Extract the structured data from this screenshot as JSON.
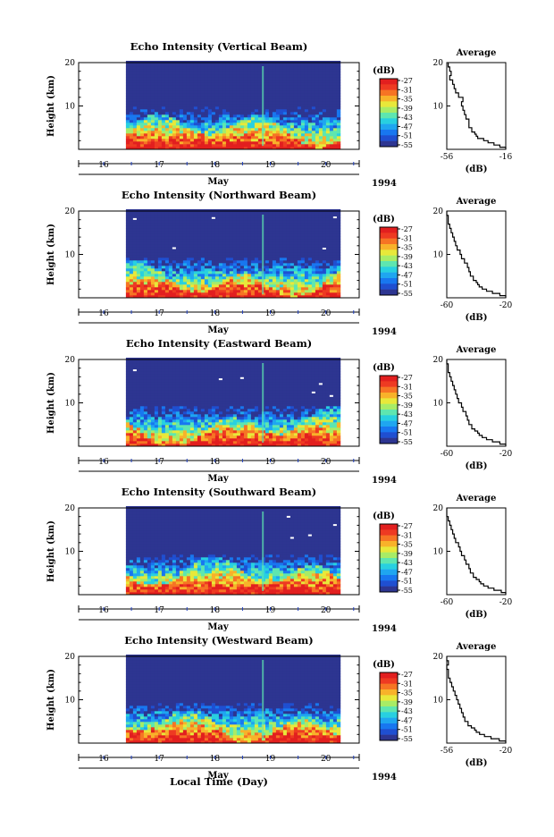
{
  "figure": {
    "x_axis_title": "Local Time (Day)",
    "month_label": "May",
    "year_label": "1994"
  },
  "colorbar": {
    "title": "(dB)",
    "ticks": [
      "-27",
      "-31",
      "-35",
      "-39",
      "-43",
      "-47",
      "-51",
      "-55"
    ],
    "colors": [
      "#2d3591",
      "#1f4fd1",
      "#1877f0",
      "#1fa6f0",
      "#28d0e0",
      "#5ee6b0",
      "#a8ec66",
      "#e8e83a",
      "#f8b22a",
      "#f67424",
      "#ee3a22",
      "#e21f1f"
    ]
  },
  "chart_data": [
    {
      "type": "heatmap",
      "title": "Echo Intensity (Vertical Beam)",
      "ylabel": "Height (km)",
      "xlabel": "May",
      "ylim": [
        0,
        20
      ],
      "y_ticks": [
        "10",
        "20"
      ],
      "x_ticks": [
        "16",
        "17",
        "18",
        "19",
        "20"
      ],
      "xlim": [
        15.55,
        20.6
      ],
      "data_range": [
        16.4,
        20.2
      ],
      "colorbar_range_db": [
        -55,
        -27
      ],
      "profile": {
        "title": "Average",
        "xlabel": "(dB)",
        "x_ticks": [
          "-56",
          "-16"
        ],
        "xlim": [
          -56,
          -16
        ],
        "ylim": [
          0,
          20
        ],
        "y_ticks": [
          "10",
          "20"
        ],
        "height_km": [
          0.5,
          1,
          1.5,
          2,
          2.5,
          3,
          3.5,
          4,
          5,
          6,
          7,
          8,
          9,
          10,
          11,
          12,
          13,
          14,
          15,
          16,
          17,
          18,
          19,
          20
        ],
        "db": [
          -16,
          -20,
          -24,
          -28,
          -31,
          -35,
          -36,
          -37,
          -39,
          -41,
          -41,
          -43,
          -44,
          -45,
          -46,
          -45,
          -48,
          -50,
          -51,
          -52,
          -54,
          -53,
          -54,
          -55
        ]
      }
    },
    {
      "type": "heatmap",
      "title": "Echo Intensity (Northward Beam)",
      "ylabel": "Height (km)",
      "xlabel": "May",
      "ylim": [
        0,
        20
      ],
      "y_ticks": [
        "10",
        "20"
      ],
      "x_ticks": [
        "16",
        "17",
        "18",
        "19",
        "20"
      ],
      "xlim": [
        15.55,
        20.6
      ],
      "data_range": [
        16.4,
        20.2
      ],
      "colorbar_range_db": [
        -55,
        -27
      ],
      "profile": {
        "title": "Average",
        "xlabel": "(dB)",
        "x_ticks": [
          "-60",
          "-20"
        ],
        "xlim": [
          -60,
          -20
        ],
        "ylim": [
          0,
          20
        ],
        "y_ticks": [
          "10",
          "20"
        ],
        "height_km": [
          0.5,
          1,
          1.5,
          2,
          2.5,
          3,
          3.5,
          4,
          5,
          6,
          7,
          8,
          9,
          10,
          11,
          12,
          13,
          14,
          15,
          16,
          17,
          18,
          19,
          20
        ],
        "db": [
          -20,
          -24,
          -29,
          -33,
          -36,
          -38,
          -39,
          -40,
          -42,
          -44,
          -45,
          -46,
          -48,
          -50,
          -51,
          -53,
          -54,
          -55,
          -56,
          -57,
          -58,
          -59,
          -59,
          -60
        ]
      }
    },
    {
      "type": "heatmap",
      "title": "Echo Intensity (Eastward Beam)",
      "ylabel": "Height (km)",
      "xlabel": "May",
      "ylim": [
        0,
        20
      ],
      "y_ticks": [
        "10",
        "20"
      ],
      "x_ticks": [
        "16",
        "17",
        "18",
        "19",
        "20"
      ],
      "xlim": [
        15.55,
        20.6
      ],
      "data_range": [
        16.4,
        20.2
      ],
      "colorbar_range_db": [
        -55,
        -27
      ],
      "profile": {
        "title": "Average",
        "xlabel": "(dB)",
        "x_ticks": [
          "-60",
          "-20"
        ],
        "xlim": [
          -60,
          -20
        ],
        "ylim": [
          0,
          20
        ],
        "y_ticks": [
          "10",
          "20"
        ],
        "height_km": [
          0.5,
          1,
          1.5,
          2,
          2.5,
          3,
          3.5,
          4,
          5,
          6,
          7,
          8,
          9,
          10,
          11,
          12,
          13,
          14,
          15,
          16,
          17,
          18,
          19,
          20
        ],
        "db": [
          -20,
          -24,
          -29,
          -33,
          -36,
          -38,
          -39,
          -41,
          -43,
          -45,
          -46,
          -47,
          -49,
          -50,
          -52,
          -53,
          -54,
          -55,
          -56,
          -57,
          -58,
          -59,
          -59,
          -60
        ]
      }
    },
    {
      "type": "heatmap",
      "title": "Echo Intensity (Southward Beam)",
      "ylabel": "Height (km)",
      "xlabel": "May",
      "ylim": [
        0,
        20
      ],
      "y_ticks": [
        "10",
        "20"
      ],
      "x_ticks": [
        "16",
        "17",
        "18",
        "19",
        "20"
      ],
      "xlim": [
        15.55,
        20.6
      ],
      "data_range": [
        16.4,
        20.2
      ],
      "colorbar_range_db": [
        -55,
        -27
      ],
      "profile": {
        "title": "Average",
        "xlabel": "(dB)",
        "x_ticks": [
          "-60",
          "-20"
        ],
        "xlim": [
          -60,
          -20
        ],
        "ylim": [
          0,
          20
        ],
        "y_ticks": [
          "10",
          "20"
        ],
        "height_km": [
          0.5,
          1,
          1.5,
          2,
          2.5,
          3,
          3.5,
          4,
          5,
          6,
          7,
          8,
          9,
          10,
          11,
          12,
          13,
          14,
          15,
          16,
          17,
          18,
          19,
          20
        ],
        "db": [
          -20,
          -23,
          -28,
          -32,
          -35,
          -37,
          -38,
          -40,
          -42,
          -44,
          -45,
          -47,
          -48,
          -50,
          -51,
          -52,
          -54,
          -55,
          -56,
          -57,
          -58,
          -59,
          -60,
          -60
        ]
      }
    },
    {
      "type": "heatmap",
      "title": "Echo Intensity (Westward Beam)",
      "ylabel": "Height (km)",
      "xlabel": "May",
      "ylim": [
        0,
        20
      ],
      "y_ticks": [
        "10",
        "20"
      ],
      "x_ticks": [
        "16",
        "17",
        "18",
        "19",
        "20"
      ],
      "xlim": [
        15.55,
        20.6
      ],
      "data_range": [
        16.4,
        20.2
      ],
      "colorbar_range_db": [
        -55,
        -27
      ],
      "profile": {
        "title": "Average",
        "xlabel": "(dB)",
        "x_ticks": [
          "-56",
          "-20"
        ],
        "xlim": [
          -56,
          -20
        ],
        "ylim": [
          0,
          20
        ],
        "y_ticks": [
          "10",
          "20"
        ],
        "height_km": [
          0.5,
          1,
          1.5,
          2,
          2.5,
          3,
          3.5,
          4,
          5,
          6,
          7,
          8,
          9,
          10,
          11,
          12,
          13,
          14,
          15,
          16,
          17,
          18,
          19,
          20
        ],
        "db": [
          -20,
          -24,
          -29,
          -33,
          -36,
          -38,
          -39,
          -41,
          -43,
          -45,
          -46,
          -47,
          -48,
          -49,
          -50,
          -51,
          -52,
          -53,
          -54,
          -55,
          -55,
          -56,
          -55,
          -56
        ]
      }
    }
  ]
}
